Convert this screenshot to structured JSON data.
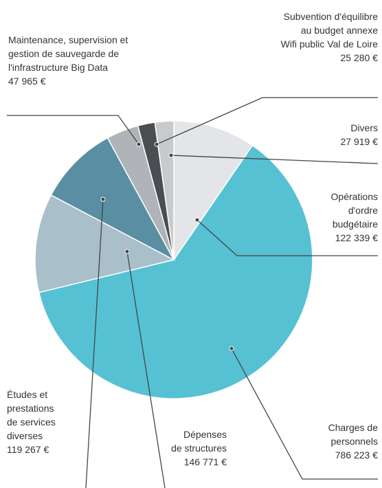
{
  "chart_data": {
    "type": "pie",
    "categories": [
      "Opérations\nd'ordre\nbudgétaire",
      "Charges de\npersonnels",
      "Dépenses\nde structures",
      "Études et\nprestations\nde services\ndiverses",
      "Maintenance, supervision et\ngestion de sauvegarde de\nl'infrastructure Big Data",
      "Subvention d'équilibre\nau budget annexe\nWifi public Val de Loire",
      "Divers"
    ],
    "values": [
      122339,
      786223,
      146771,
      119267,
      47965,
      25280,
      27919
    ],
    "value_labels": [
      "122 339 €",
      "786 223 €",
      "146 771 €",
      "119 267 €",
      "47 965 €",
      "25 280 €",
      "27 919 €"
    ],
    "colors": [
      "#e4e5e8",
      "#55c1d3",
      "#a9bfc9",
      "#5a8fa3",
      "#b0b3b7",
      "#4a4d52",
      "#c9cacc"
    ]
  }
}
